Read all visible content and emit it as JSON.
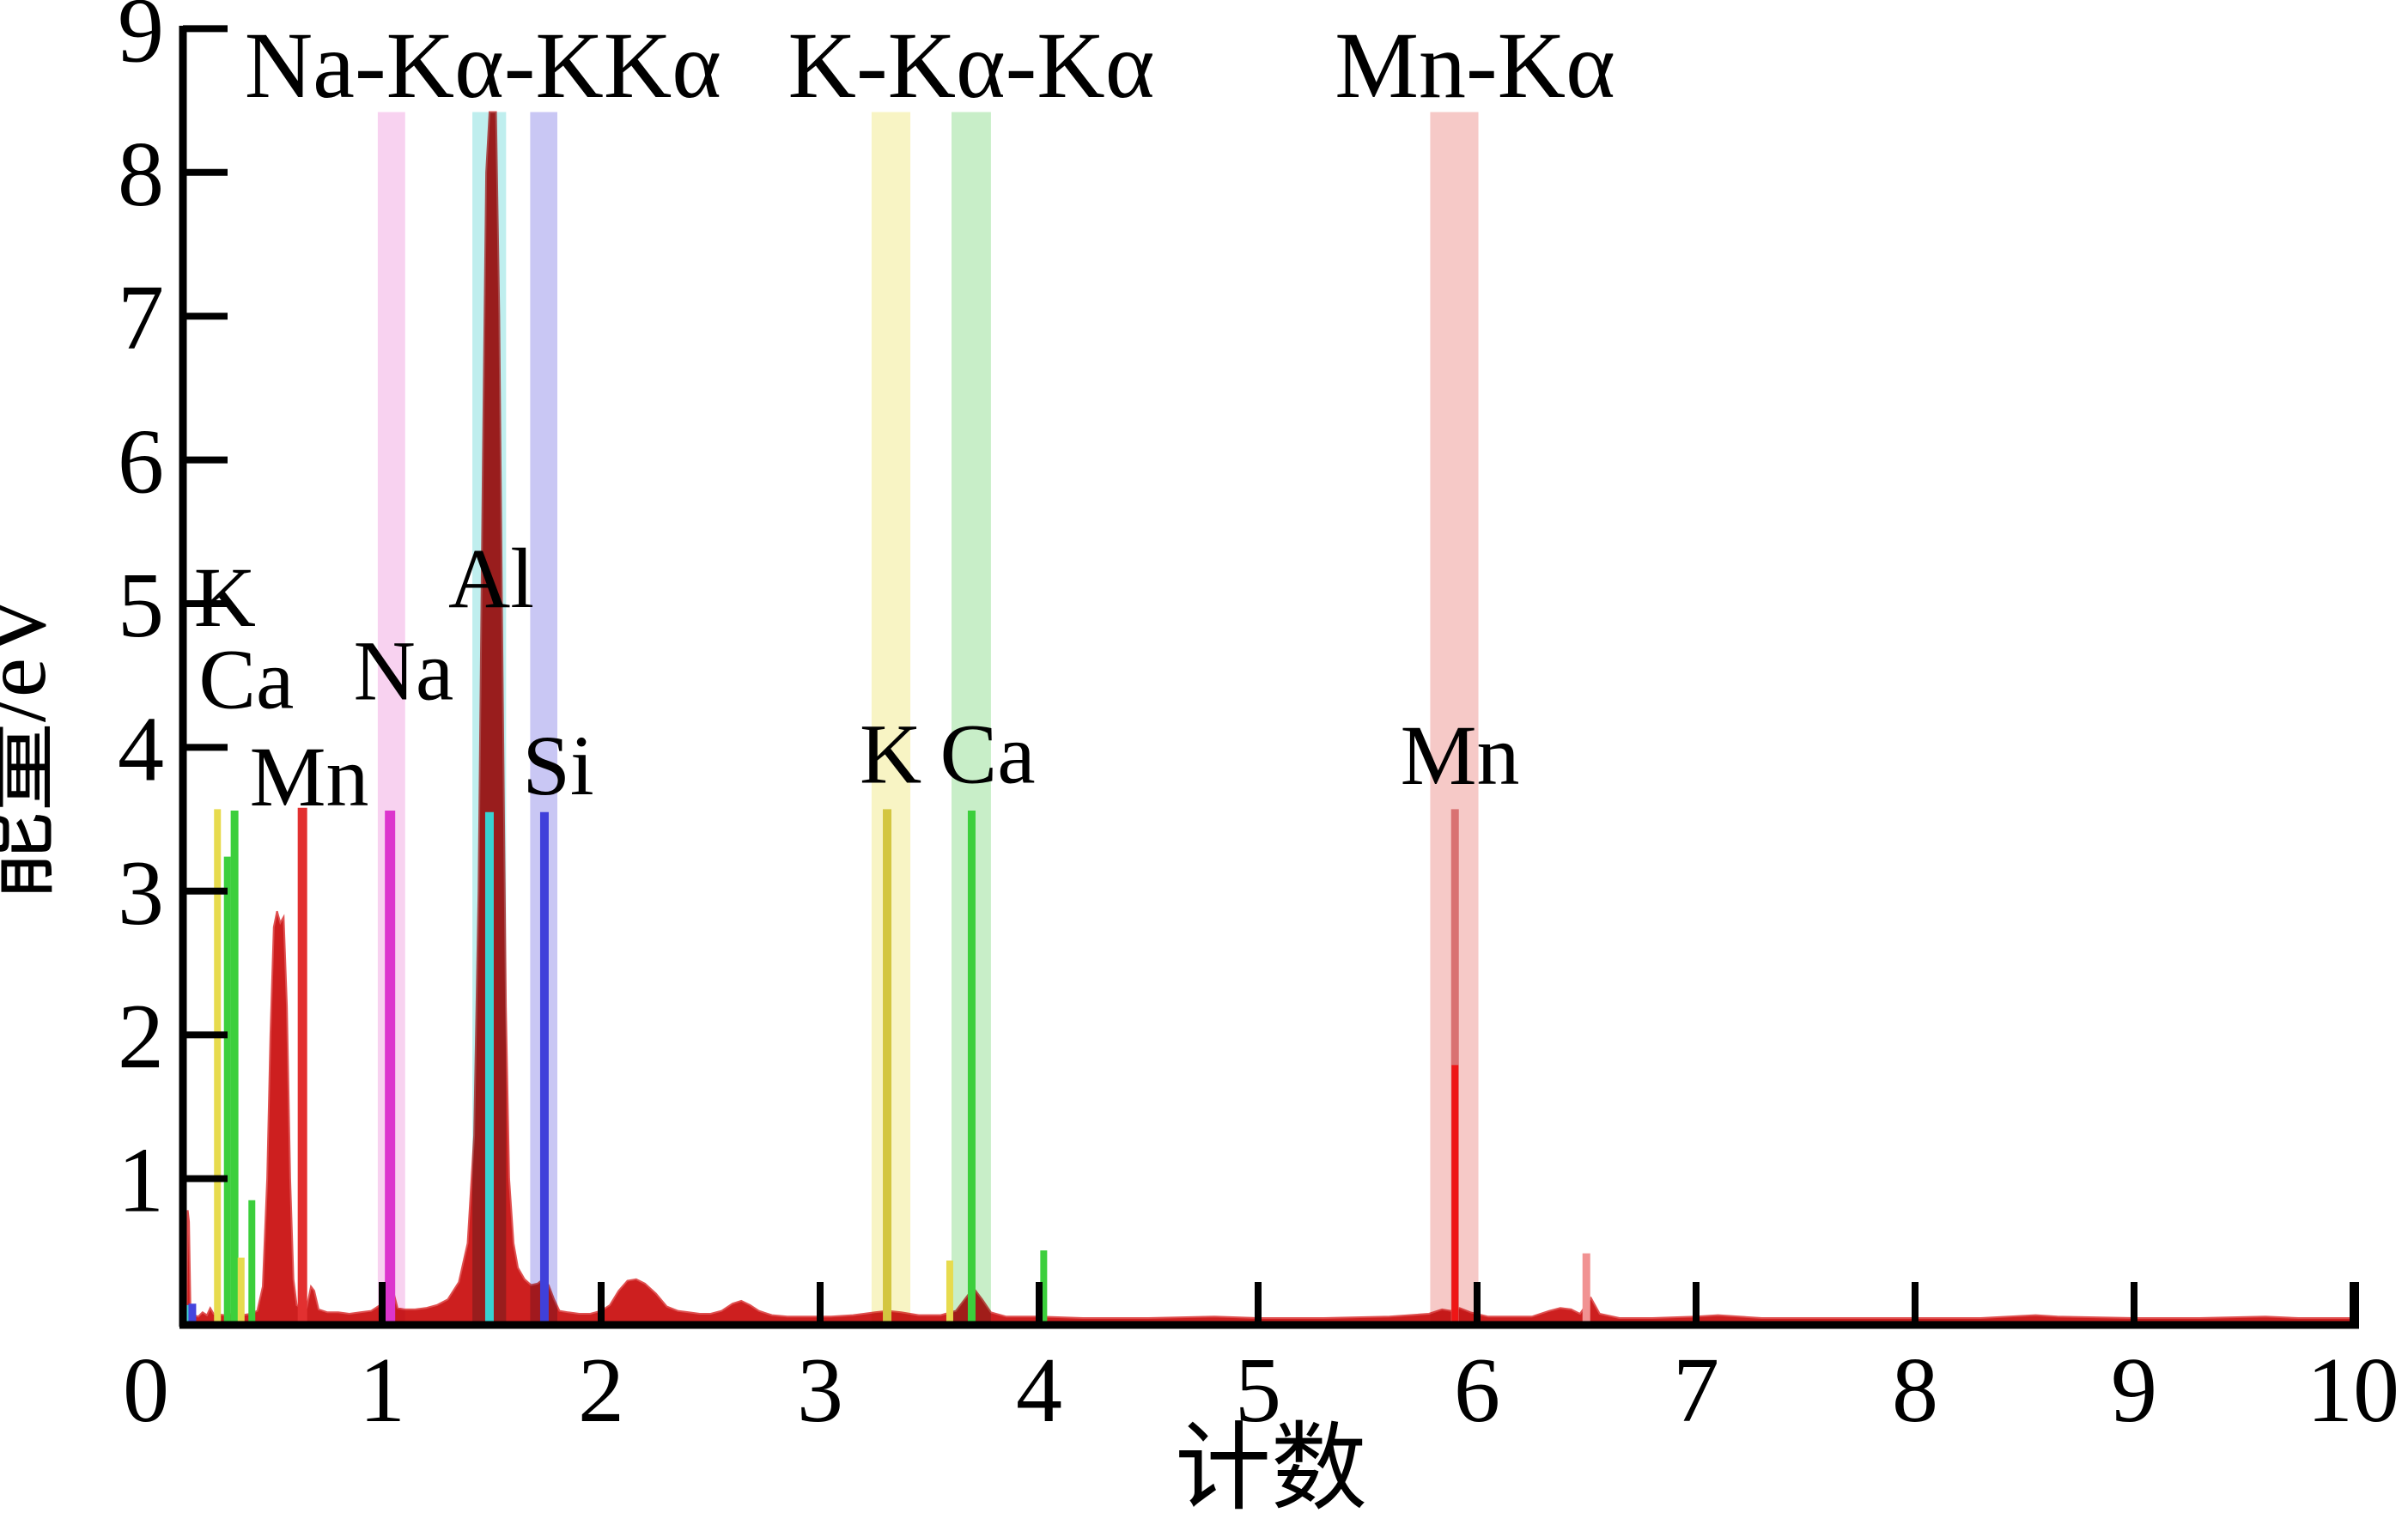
{
  "chart_data": {
    "type": "area",
    "title": "",
    "xlabel": "计数",
    "ylabel": "能量/eV",
    "xlim": [
      0,
      10
    ],
    "ylim": [
      0,
      9
    ],
    "x_ticks": [
      0,
      1,
      2,
      3,
      4,
      5,
      6,
      7,
      8,
      9,
      10
    ],
    "y_ticks": [
      1,
      2,
      3,
      4,
      5,
      6,
      7,
      8,
      9
    ],
    "grid": false,
    "legend": "none",
    "peak_annotations": [
      {
        "text": "Na-Kα-KKα",
        "x": 1.46
      },
      {
        "text": "K-Kα-Kα",
        "x": 3.69
      },
      {
        "text": "Mn-Kα",
        "x": 5.99
      }
    ],
    "element_labels": [
      {
        "text": "K",
        "x": 0.282,
        "y": 5.06
      },
      {
        "text": "Ca",
        "x": 0.38,
        "y": 4.49
      },
      {
        "text": "Na",
        "x": 1.098,
        "y": 4.55
      },
      {
        "text": "Mn",
        "x": 0.667,
        "y": 3.81
      },
      {
        "text": "Al",
        "x": 1.498,
        "y": 5.19
      },
      {
        "text": "Si",
        "x": 1.804,
        "y": 3.89
      },
      {
        "text": "K",
        "x": 3.322,
        "y": 3.97
      },
      {
        "text": "Ca",
        "x": 3.765,
        "y": 3.97
      },
      {
        "text": "Mn",
        "x": 5.922,
        "y": 3.96
      }
    ],
    "bands": [
      {
        "element": "Na",
        "x1": 0.98,
        "x2": 1.105,
        "color": "#f8d2f0"
      },
      {
        "element": "Al",
        "x1": 1.412,
        "x2": 1.566,
        "color": "#bfeeee"
      },
      {
        "element": "Si",
        "x1": 1.676,
        "x2": 1.8,
        "color": "#c9c7f4"
      },
      {
        "element": "K",
        "x1": 3.235,
        "x2": 3.412,
        "color": "#f8f4c4"
      },
      {
        "element": "Ca",
        "x1": 3.6,
        "x2": 3.78,
        "color": "#c8eec8"
      },
      {
        "element": "Mn",
        "x1": 5.786,
        "x2": 6.006,
        "color": "#f6c9c7"
      }
    ],
    "band_top": 8.42,
    "marker_lines": [
      {
        "color": "#45d6d6",
        "x": 0.1,
        "h": 0.12,
        "w": 9
      },
      {
        "color": "#4545dd",
        "x": 0.133,
        "h": 0.13,
        "w": 9
      },
      {
        "color": "#e7db4e",
        "x": 0.248,
        "h": 3.57,
        "w": 8
      },
      {
        "color": "#3ccf3c",
        "x": 0.293,
        "h": 3.24,
        "w": 8
      },
      {
        "color": "#3ccf3c",
        "x": 0.326,
        "h": 3.56,
        "w": 9
      },
      {
        "color": "#e7db4e",
        "x": 0.356,
        "h": 0.45,
        "w": 8
      },
      {
        "color": "#3ccf3c",
        "x": 0.405,
        "h": 0.85,
        "w": 8
      },
      {
        "color": "#e23030",
        "x": 0.636,
        "h": 3.58,
        "w": 11
      },
      {
        "color": "#dc35cd",
        "x": 1.036,
        "h": 3.56,
        "w": 12
      },
      {
        "color": "#38d2d2",
        "x": 1.49,
        "h": 3.55,
        "w": 10
      },
      {
        "color": "#4040da",
        "x": 1.741,
        "h": 3.55,
        "w": 10
      },
      {
        "color": "#d3c640",
        "x": 3.306,
        "h": 3.57,
        "w": 10
      },
      {
        "color": "#e7db4e",
        "x": 3.592,
        "h": 0.43,
        "w": 8
      },
      {
        "color": "#3ccf3c",
        "x": 3.692,
        "h": 3.56,
        "w": 9
      },
      {
        "color": "#3ccf3c",
        "x": 4.021,
        "h": 0.5,
        "w": 8
      },
      {
        "color": "#d97272",
        "x": 5.899,
        "h": 3.57,
        "w": 9
      },
      {
        "color": "#ee1616",
        "x": 5.899,
        "h": 1.79,
        "w": 8
      },
      {
        "color": "#f19292",
        "x": 6.499,
        "h": 0.48,
        "w": 9
      }
    ],
    "spectrum": {
      "fill": "#cd1f1f",
      "edge": "#df5050",
      "points": [
        [
          0.092,
          0.02
        ],
        [
          0.1,
          0.05
        ],
        [
          0.107,
          0.06
        ],
        [
          0.112,
          0.78
        ],
        [
          0.118,
          0.7
        ],
        [
          0.125,
          0.06
        ],
        [
          0.16,
          0.04
        ],
        [
          0.18,
          0.07
        ],
        [
          0.2,
          0.05
        ],
        [
          0.215,
          0.1
        ],
        [
          0.23,
          0.06
        ],
        [
          0.28,
          0.05
        ],
        [
          0.32,
          0.06
        ],
        [
          0.36,
          0.05
        ],
        [
          0.4,
          0.06
        ],
        [
          0.43,
          0.08
        ],
        [
          0.455,
          0.25
        ],
        [
          0.475,
          1.0
        ],
        [
          0.49,
          2.0
        ],
        [
          0.505,
          2.75
        ],
        [
          0.52,
          2.86
        ],
        [
          0.535,
          2.78
        ],
        [
          0.55,
          2.82
        ],
        [
          0.565,
          2.2
        ],
        [
          0.58,
          1.0
        ],
        [
          0.595,
          0.3
        ],
        [
          0.61,
          0.12
        ],
        [
          0.63,
          0.1
        ],
        [
          0.655,
          0.1
        ],
        [
          0.675,
          0.25
        ],
        [
          0.69,
          0.22
        ],
        [
          0.71,
          0.09
        ],
        [
          0.75,
          0.07
        ],
        [
          0.8,
          0.07
        ],
        [
          0.85,
          0.06
        ],
        [
          0.9,
          0.07
        ],
        [
          0.95,
          0.08
        ],
        [
          0.99,
          0.12
        ],
        [
          1.02,
          0.3
        ],
        [
          1.035,
          0.35
        ],
        [
          1.05,
          0.22
        ],
        [
          1.07,
          0.1
        ],
        [
          1.1,
          0.09
        ],
        [
          1.15,
          0.09
        ],
        [
          1.2,
          0.1
        ],
        [
          1.25,
          0.12
        ],
        [
          1.3,
          0.16
        ],
        [
          1.35,
          0.28
        ],
        [
          1.39,
          0.55
        ],
        [
          1.42,
          1.3
        ],
        [
          1.44,
          3.0
        ],
        [
          1.46,
          6.0
        ],
        [
          1.475,
          8.0
        ],
        [
          1.49,
          8.42
        ],
        [
          1.52,
          8.42
        ],
        [
          1.535,
          7.0
        ],
        [
          1.55,
          4.5
        ],
        [
          1.565,
          2.2
        ],
        [
          1.58,
          1.0
        ],
        [
          1.6,
          0.55
        ],
        [
          1.62,
          0.38
        ],
        [
          1.65,
          0.3
        ],
        [
          1.68,
          0.26
        ],
        [
          1.71,
          0.27
        ],
        [
          1.735,
          0.3
        ],
        [
          1.76,
          0.26
        ],
        [
          1.785,
          0.16
        ],
        [
          1.81,
          0.08
        ],
        [
          1.85,
          0.07
        ],
        [
          1.9,
          0.06
        ],
        [
          1.95,
          0.06
        ],
        [
          2.0,
          0.08
        ],
        [
          2.04,
          0.12
        ],
        [
          2.08,
          0.22
        ],
        [
          2.12,
          0.29
        ],
        [
          2.16,
          0.3
        ],
        [
          2.2,
          0.27
        ],
        [
          2.25,
          0.2
        ],
        [
          2.3,
          0.11
        ],
        [
          2.35,
          0.08
        ],
        [
          2.4,
          0.07
        ],
        [
          2.45,
          0.06
        ],
        [
          2.5,
          0.06
        ],
        [
          2.55,
          0.08
        ],
        [
          2.6,
          0.13
        ],
        [
          2.64,
          0.15
        ],
        [
          2.68,
          0.12
        ],
        [
          2.72,
          0.08
        ],
        [
          2.78,
          0.05
        ],
        [
          2.85,
          0.04
        ],
        [
          2.95,
          0.04
        ],
        [
          3.05,
          0.04
        ],
        [
          3.15,
          0.05
        ],
        [
          3.25,
          0.07
        ],
        [
          3.31,
          0.08
        ],
        [
          3.37,
          0.07
        ],
        [
          3.45,
          0.05
        ],
        [
          3.55,
          0.05
        ],
        [
          3.62,
          0.08
        ],
        [
          3.66,
          0.16
        ],
        [
          3.7,
          0.24
        ],
        [
          3.74,
          0.16
        ],
        [
          3.78,
          0.07
        ],
        [
          3.85,
          0.04
        ],
        [
          4.0,
          0.04
        ],
        [
          4.2,
          0.03
        ],
        [
          4.5,
          0.03
        ],
        [
          4.8,
          0.04
        ],
        [
          5.0,
          0.03
        ],
        [
          5.3,
          0.03
        ],
        [
          5.6,
          0.04
        ],
        [
          5.78,
          0.06
        ],
        [
          5.84,
          0.09
        ],
        [
          5.88,
          0.08
        ],
        [
          5.92,
          0.1
        ],
        [
          5.97,
          0.07
        ],
        [
          6.05,
          0.04
        ],
        [
          6.15,
          0.04
        ],
        [
          6.25,
          0.04
        ],
        [
          6.33,
          0.08
        ],
        [
          6.38,
          0.1
        ],
        [
          6.43,
          0.09
        ],
        [
          6.47,
          0.06
        ],
        [
          6.52,
          0.17
        ],
        [
          6.56,
          0.06
        ],
        [
          6.65,
          0.03
        ],
        [
          6.8,
          0.03
        ],
        [
          7.0,
          0.04
        ],
        [
          7.1,
          0.05
        ],
        [
          7.3,
          0.03
        ],
        [
          7.6,
          0.03
        ],
        [
          8.0,
          0.03
        ],
        [
          8.3,
          0.03
        ],
        [
          8.55,
          0.05
        ],
        [
          8.65,
          0.04
        ],
        [
          9.0,
          0.03
        ],
        [
          9.3,
          0.03
        ],
        [
          9.6,
          0.04
        ],
        [
          9.75,
          0.03
        ],
        [
          10.0,
          0.03
        ]
      ]
    },
    "marker_top_default": 3.56,
    "axis_color": "#000000"
  }
}
